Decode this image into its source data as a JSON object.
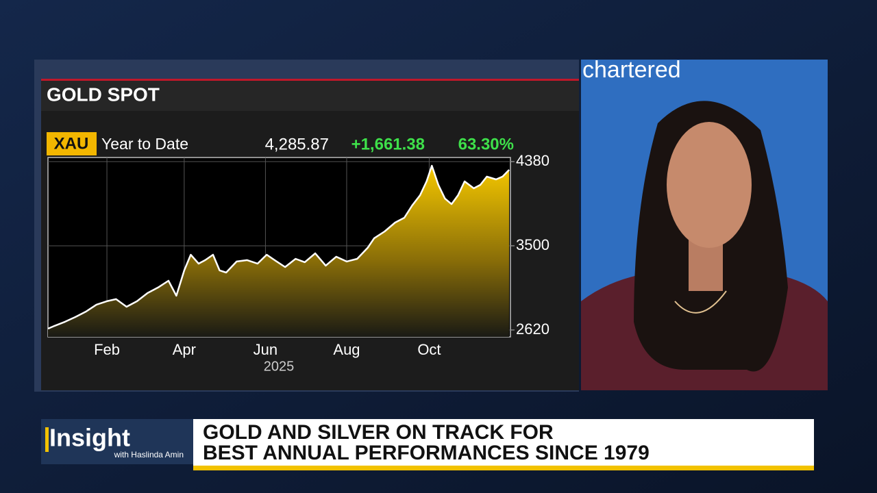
{
  "chart_data": {
    "type": "area",
    "title": "GOLD SPOT",
    "ticker": "XAU",
    "period": "Year to Date",
    "last": "4,285.87",
    "change": "+1,661.38",
    "change_pct": "63.30%",
    "x": [
      1,
      6,
      14,
      22,
      30,
      38,
      46,
      53,
      61,
      69,
      77,
      85,
      93,
      99,
      105,
      110,
      116,
      121,
      127,
      132,
      137,
      145,
      153,
      161,
      168,
      174,
      182,
      190,
      197,
      205,
      213,
      221,
      229,
      237,
      245,
      250,
      258,
      266,
      273,
      279,
      285,
      290,
      294,
      299,
      304,
      309,
      314,
      319,
      326,
      331,
      336,
      343,
      348,
      353
    ],
    "values": [
      2634,
      2663,
      2706,
      2756,
      2813,
      2885,
      2921,
      2942,
      2863,
      2921,
      3006,
      3064,
      3135,
      2978,
      3243,
      3407,
      3314,
      3350,
      3407,
      3243,
      3221,
      3336,
      3350,
      3314,
      3407,
      3350,
      3278,
      3364,
      3329,
      3421,
      3293,
      3386,
      3336,
      3364,
      3479,
      3579,
      3650,
      3743,
      3793,
      3922,
      4029,
      4173,
      4337,
      4137,
      3994,
      3936,
      4029,
      4173,
      4101,
      4137,
      4223,
      4194,
      4223,
      4294
    ],
    "xlim": [
      1,
      354
    ],
    "xticks": [
      {
        "value": 46,
        "label": "Feb"
      },
      {
        "value": 105,
        "label": "Apr"
      },
      {
        "value": 167,
        "label": "Jun"
      },
      {
        "value": 229,
        "label": "Aug"
      },
      {
        "value": 292,
        "label": "Oct"
      }
    ],
    "xlabel": "2025",
    "ylim": [
      2548,
      4423
    ],
    "yticks": [
      2620,
      3500,
      4380
    ],
    "color": "#f2c200",
    "line_color": "#ffffff",
    "grid": true
  },
  "video": {
    "backdrop_text": "chartered"
  },
  "banner": {
    "brand": "Insight",
    "host": "with Haslinda Amin",
    "headline": [
      "GOLD AND SILVER ON TRACK FOR",
      "BEST ANNUAL PERFORMANCES SINCE 1979"
    ]
  }
}
